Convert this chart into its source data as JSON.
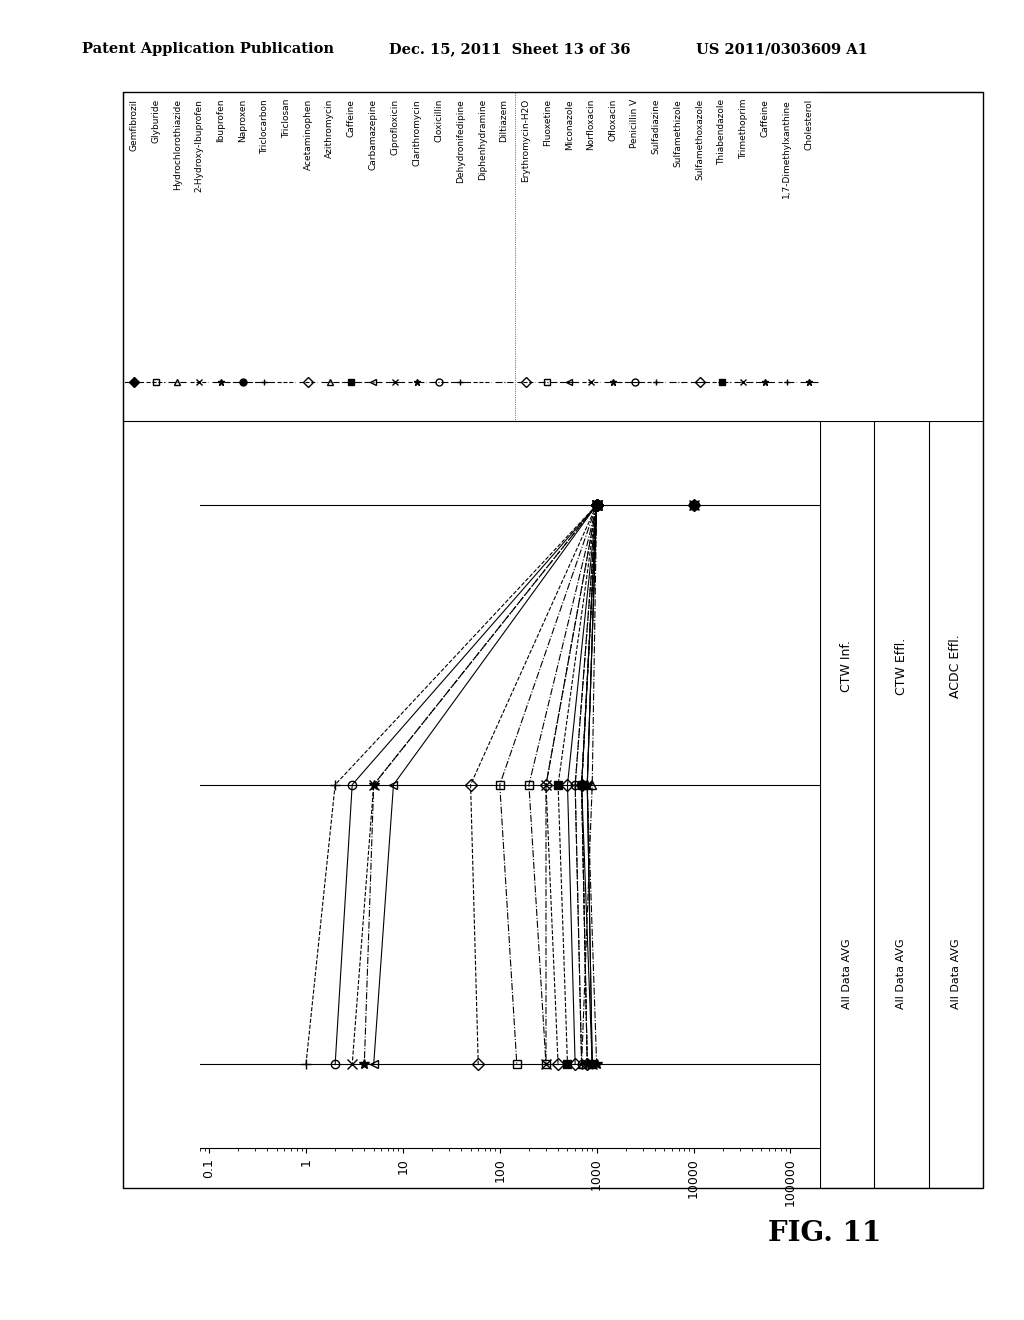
{
  "header_left": "Patent Application Publication",
  "header_center": "Dec. 15, 2011  Sheet 13 of 36",
  "header_right": "US 2011/0303609 A1",
  "figure_label": "FIG. 11",
  "legend_col1": [
    {
      "name": "Gemfibrozil",
      "marker": "D",
      "filled": true,
      "linestyle": "-"
    },
    {
      "name": "Glyburide",
      "marker": "s",
      "filled": false,
      "linestyle": "--"
    },
    {
      "name": "Hydrochlorothiazide",
      "marker": "^",
      "filled": false,
      "linestyle": "-."
    },
    {
      "name": "2-Hydroxy-Ibuprofen",
      "marker": "x",
      "filled": false,
      "linestyle": "--"
    },
    {
      "name": "Ibuprofen",
      "marker": "*",
      "filled": false,
      "linestyle": "-."
    },
    {
      "name": "Naproxen",
      "marker": "o",
      "filled": true,
      "linestyle": "-"
    },
    {
      "name": "Triclocarbon",
      "marker": "+",
      "filled": false,
      "linestyle": "-"
    },
    {
      "name": "Triclosan",
      "marker": "none",
      "filled": false,
      "linestyle": "--"
    },
    {
      "name": "Acetaminophen",
      "marker": "D",
      "filled": false,
      "linestyle": "--"
    },
    {
      "name": "Azithromycin",
      "marker": "^",
      "filled": false,
      "linestyle": "-."
    },
    {
      "name": "Caffeine",
      "marker": "s",
      "filled": true,
      "linestyle": "-"
    },
    {
      "name": "Carbamazepine",
      "marker": "<",
      "filled": false,
      "linestyle": "-."
    },
    {
      "name": "Ciprofloxicin",
      "marker": "x",
      "filled": false,
      "linestyle": "-"
    },
    {
      "name": "Clarithromycin",
      "marker": "*",
      "filled": false,
      "linestyle": "--"
    },
    {
      "name": "Cloxicillin",
      "marker": "o",
      "filled": false,
      "linestyle": "-."
    },
    {
      "name": "Dehydronifedipine",
      "marker": "+",
      "filled": false,
      "linestyle": "-"
    },
    {
      "name": "Diphenhydramine",
      "marker": "none",
      "filled": false,
      "linestyle": "--"
    },
    {
      "name": "Diltiazem",
      "marker": "none",
      "filled": false,
      "linestyle": "-."
    }
  ],
  "legend_col2": [
    {
      "name": "Erythromycin-H2O",
      "marker": "D",
      "filled": false,
      "linestyle": "--"
    },
    {
      "name": "Fluoxetine",
      "marker": "s",
      "filled": false,
      "linestyle": "-."
    },
    {
      "name": "Miconazole",
      "marker": "<",
      "filled": false,
      "linestyle": "-"
    },
    {
      "name": "Norfloxacin",
      "marker": "x",
      "filled": false,
      "linestyle": "--"
    },
    {
      "name": "Ofloxacin",
      "marker": "*",
      "filled": false,
      "linestyle": "-."
    },
    {
      "name": "Penicillin V",
      "marker": "o",
      "filled": false,
      "linestyle": "-"
    },
    {
      "name": "Sulfadiazine",
      "marker": "+",
      "filled": false,
      "linestyle": "--"
    },
    {
      "name": "Sulfamethizole",
      "marker": "none",
      "filled": false,
      "linestyle": "-."
    },
    {
      "name": "Sulfamethoxazole",
      "marker": "D",
      "filled": false,
      "linestyle": "-"
    },
    {
      "name": "Thiabendazole",
      "marker": "s",
      "filled": true,
      "linestyle": "--"
    },
    {
      "name": "Trimethoprim",
      "marker": "x",
      "filled": false,
      "linestyle": "-."
    },
    {
      "name": "Caffeine",
      "marker": "*",
      "filled": false,
      "linestyle": "-"
    },
    {
      "name": "1,7-Dimethylxanthine",
      "marker": "+",
      "filled": false,
      "linestyle": "--"
    },
    {
      "name": "Cholesterol",
      "marker": "*",
      "filled": false,
      "linestyle": "-."
    }
  ],
  "compounds": [
    {
      "name": "Gemfibrozil",
      "marker": "D",
      "filled": true,
      "linestyle": "-",
      "v": [
        10000,
        null,
        null
      ]
    },
    {
      "name": "Glyburide",
      "marker": "s",
      "filled": false,
      "linestyle": "--",
      "v": [
        10000,
        null,
        null
      ]
    },
    {
      "name": "Hydrochlorothiazide",
      "marker": "^",
      "filled": false,
      "linestyle": "-.",
      "v": [
        10000,
        null,
        null
      ]
    },
    {
      "name": "2-Hydroxy-Ibuprofen",
      "marker": "x",
      "filled": false,
      "linestyle": "--",
      "v": [
        10000,
        null,
        null
      ]
    },
    {
      "name": "Ibuprofen",
      "marker": "*",
      "filled": false,
      "linestyle": "-.",
      "v": [
        10000,
        null,
        null
      ]
    },
    {
      "name": "Naproxen",
      "marker": "o",
      "filled": true,
      "linestyle": "-",
      "v": [
        10000,
        null,
        null
      ]
    },
    {
      "name": "Triclocarbon",
      "marker": "+",
      "filled": false,
      "linestyle": "-",
      "v": [
        10000,
        null,
        null
      ]
    },
    {
      "name": "Acetaminophen",
      "marker": "D",
      "filled": false,
      "linestyle": "--",
      "v": [
        1000,
        700,
        800
      ]
    },
    {
      "name": "Azithromycin",
      "marker": "^",
      "filled": false,
      "linestyle": "-.",
      "v": [
        1000,
        900,
        700
      ]
    },
    {
      "name": "Caffeine",
      "marker": "s",
      "filled": true,
      "linestyle": "-",
      "v": [
        1000,
        700,
        900
      ]
    },
    {
      "name": "Carbamazepine",
      "marker": "<",
      "filled": false,
      "linestyle": "-.",
      "v": [
        1000,
        700,
        800
      ]
    },
    {
      "name": "Ciprofloxicin",
      "marker": "x",
      "filled": false,
      "linestyle": "-",
      "v": [
        1000,
        800,
        900
      ]
    },
    {
      "name": "Clarithromycin",
      "marker": "*",
      "filled": false,
      "linestyle": "--",
      "v": [
        1000,
        700,
        800
      ]
    },
    {
      "name": "Cloxicillin",
      "marker": "o",
      "filled": false,
      "linestyle": "-.",
      "v": [
        1000,
        600,
        700
      ]
    },
    {
      "name": "Dehydronifedipine",
      "marker": "+",
      "filled": false,
      "linestyle": "-",
      "v": [
        1000,
        800,
        900
      ]
    },
    {
      "name": "Diphenhydramine",
      "marker": "D",
      "filled": false,
      "linestyle": "--",
      "v": [
        1000,
        300,
        400
      ]
    },
    {
      "name": "Diltiazem",
      "marker": "s",
      "filled": false,
      "linestyle": "-.",
      "v": [
        1000,
        200,
        300
      ]
    },
    {
      "name": "Erythromycin-H2O",
      "marker": "D",
      "filled": false,
      "linestyle": "--",
      "v": [
        1000,
        50,
        60
      ]
    },
    {
      "name": "Fluoxetine",
      "marker": "s",
      "filled": false,
      "linestyle": "-.",
      "v": [
        1000,
        100,
        150
      ]
    },
    {
      "name": "Miconazole",
      "marker": "<",
      "filled": false,
      "linestyle": "-",
      "v": [
        1000,
        8,
        5
      ]
    },
    {
      "name": "Norfloxacin",
      "marker": "x",
      "filled": false,
      "linestyle": "--",
      "v": [
        1000,
        5,
        3
      ]
    },
    {
      "name": "Ofloxacin",
      "marker": "*",
      "filled": false,
      "linestyle": "-.",
      "v": [
        1000,
        5,
        4
      ]
    },
    {
      "name": "Penicillin V",
      "marker": "o",
      "filled": false,
      "linestyle": "-",
      "v": [
        1000,
        3,
        2
      ]
    },
    {
      "name": "Sulfadiazine",
      "marker": "+",
      "filled": false,
      "linestyle": "--",
      "v": [
        1000,
        2,
        1
      ]
    },
    {
      "name": "Sulfamethoxazole",
      "marker": "D",
      "filled": false,
      "linestyle": "-",
      "v": [
        1000,
        500,
        600
      ]
    },
    {
      "name": "Thiabendazole",
      "marker": "s",
      "filled": true,
      "linestyle": "--",
      "v": [
        1000,
        400,
        500
      ]
    },
    {
      "name": "Trimethoprim",
      "marker": "x",
      "filled": false,
      "linestyle": "-.",
      "v": [
        1000,
        300,
        300
      ]
    },
    {
      "name": "1,7-Dimethylxanthine",
      "marker": "+",
      "filled": false,
      "linestyle": "--",
      "v": [
        1000,
        600,
        700
      ]
    },
    {
      "name": "Cholesterol",
      "marker": "*",
      "filled": false,
      "linestyle": "-.",
      "v": [
        1000,
        800,
        1000
      ]
    }
  ],
  "right_panel": [
    {
      "label": "CTW Inf.",
      "sub": "All Data AVG"
    },
    {
      "label": "CTW Effl.",
      "sub": "All Data AVG"
    },
    {
      "label": "ACDC Effl.",
      "sub": "All Data AVG"
    }
  ]
}
